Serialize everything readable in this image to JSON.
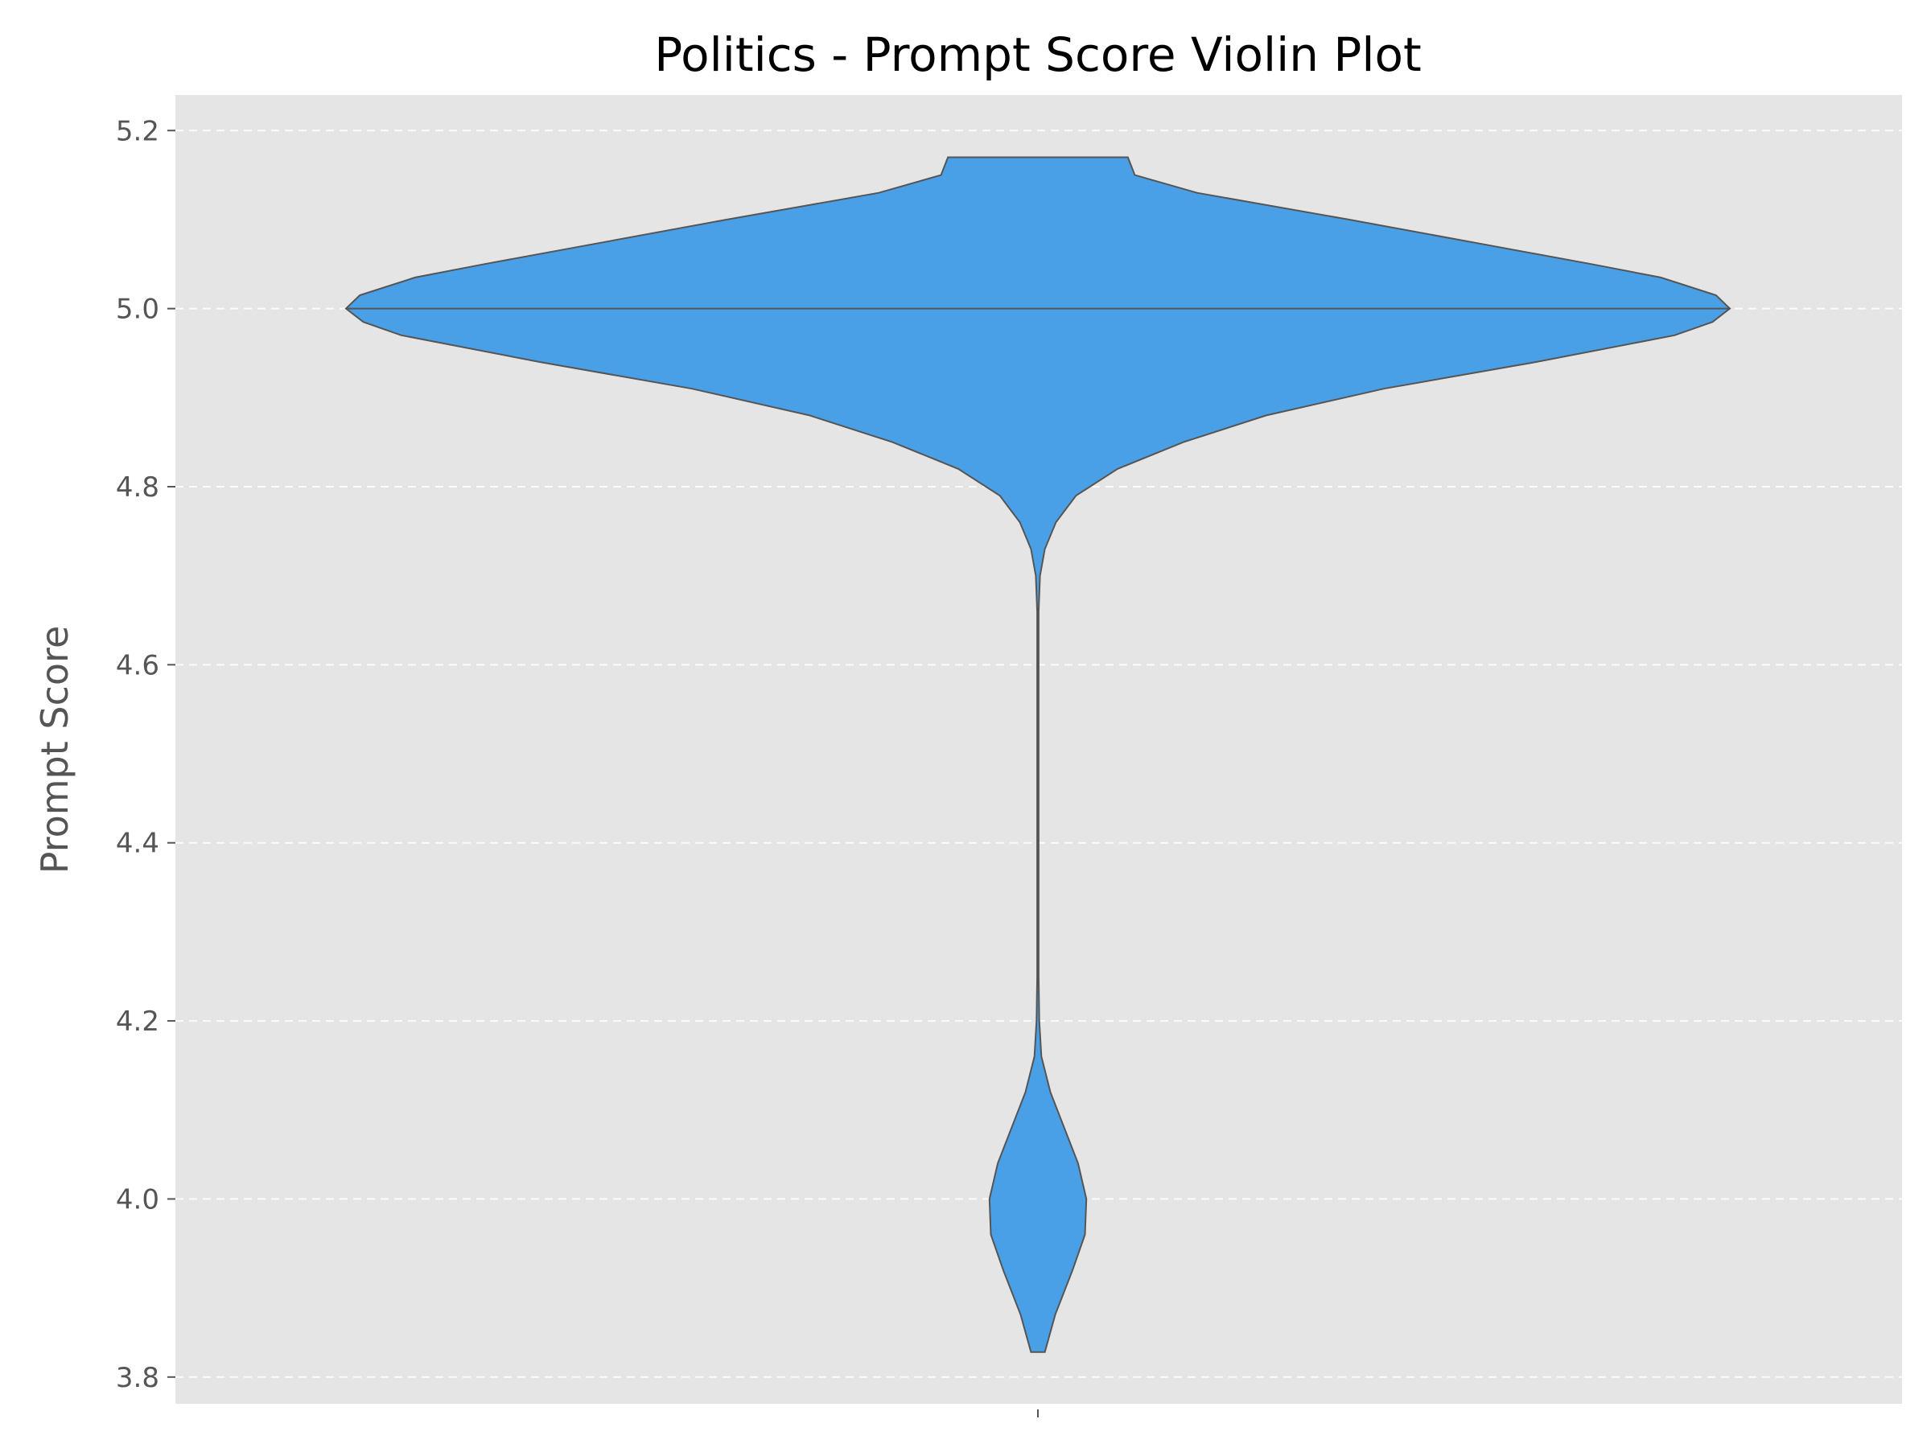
{
  "chart_data": {
    "type": "violin",
    "title": "Politics - Prompt Score Violin Plot",
    "xlabel": "",
    "ylabel": "Prompt Score",
    "ylim": [
      3.77,
      5.24
    ],
    "yticks": [
      "3.8",
      "4.0",
      "4.2",
      "4.4",
      "4.6",
      "4.8",
      "5.0",
      "5.2"
    ],
    "ytick_values": [
      3.8,
      4.0,
      4.2,
      4.4,
      4.6,
      4.8,
      5.0,
      5.2
    ],
    "grid": "horizontal dashed",
    "background_color": "#e5e5e5",
    "violin_color": "#4aa0e6",
    "edge_color": "#555555",
    "x_categories": [
      ""
    ],
    "density_profile": {
      "y": [
        3.828,
        3.87,
        3.92,
        3.96,
        4.0,
        4.04,
        4.08,
        4.12,
        4.16,
        4.2,
        4.25,
        4.3,
        4.4,
        4.5,
        4.6,
        4.66,
        4.7,
        4.73,
        4.76,
        4.79,
        4.82,
        4.85,
        4.88,
        4.91,
        4.94,
        4.97,
        4.985,
        5.0,
        5.015,
        5.02,
        5.035,
        5.05,
        5.07,
        5.1,
        5.13,
        5.15,
        5.17
      ],
      "half_width_relative": [
        0.01,
        0.025,
        0.05,
        0.068,
        0.07,
        0.058,
        0.038,
        0.018,
        0.005,
        0.002,
        0.001,
        0.001,
        0.001,
        0.001,
        0.001,
        0.001,
        0.003,
        0.01,
        0.026,
        0.055,
        0.115,
        0.21,
        0.33,
        0.5,
        0.72,
        0.92,
        0.975,
        1.0,
        0.98,
        0.96,
        0.9,
        0.8,
        0.66,
        0.45,
        0.23,
        0.14,
        0.13
      ]
    },
    "median": 5.0
  }
}
